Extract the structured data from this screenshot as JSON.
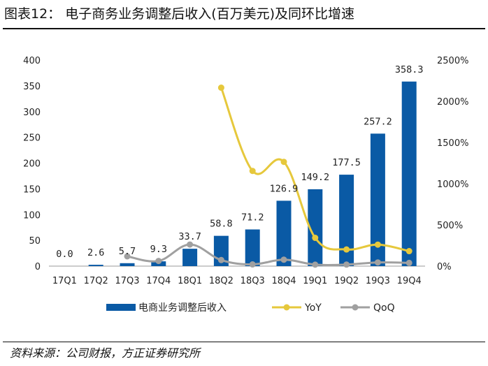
{
  "title": "图表12： 电子商务业务调整后收入(百万美元)及同环比增速",
  "source": "资料来源：公司财报，方正证券研究所",
  "chart_data": {
    "type": "bar+line",
    "categories": [
      "17Q1",
      "17Q2",
      "17Q3",
      "17Q4",
      "18Q1",
      "18Q2",
      "18Q3",
      "18Q4",
      "19Q1",
      "19Q2",
      "19Q3",
      "19Q4"
    ],
    "bar_series": {
      "name": "电商业务调整后收入",
      "color": "#0a5aa5",
      "values": [
        0.0,
        2.6,
        5.7,
        9.3,
        33.7,
        58.8,
        71.2,
        126.9,
        149.2,
        177.5,
        257.2,
        358.3
      ],
      "labels": [
        "0.0",
        "2.6",
        "5.7",
        "9.3",
        "33.7",
        "58.8",
        "71.2",
        "126.9",
        "149.2",
        "177.5",
        "257.2",
        "358.3"
      ]
    },
    "line_series": [
      {
        "name": "YoY",
        "color": "#e6c83c",
        "values": [
          null,
          null,
          null,
          null,
          null,
          2165,
          1155,
          1265,
          343,
          202,
          261,
          182
        ]
      },
      {
        "name": "QoQ",
        "color": "#a0a0a0",
        "values": [
          null,
          null,
          119,
          63,
          262,
          74,
          21,
          78,
          18,
          19,
          45,
          39
        ]
      }
    ],
    "y_left": {
      "ylim": [
        0,
        400
      ],
      "ticks": [
        0,
        50,
        100,
        150,
        200,
        250,
        300,
        350,
        400
      ]
    },
    "y_right": {
      "ylim": [
        0,
        2500
      ],
      "ticks": [
        "0%",
        "500%",
        "1000%",
        "1500%",
        "2000%",
        "2500%"
      ]
    },
    "legend": [
      "电商业务调整后收入",
      "YoY",
      "QoQ"
    ],
    "legend_position": "bottom"
  }
}
